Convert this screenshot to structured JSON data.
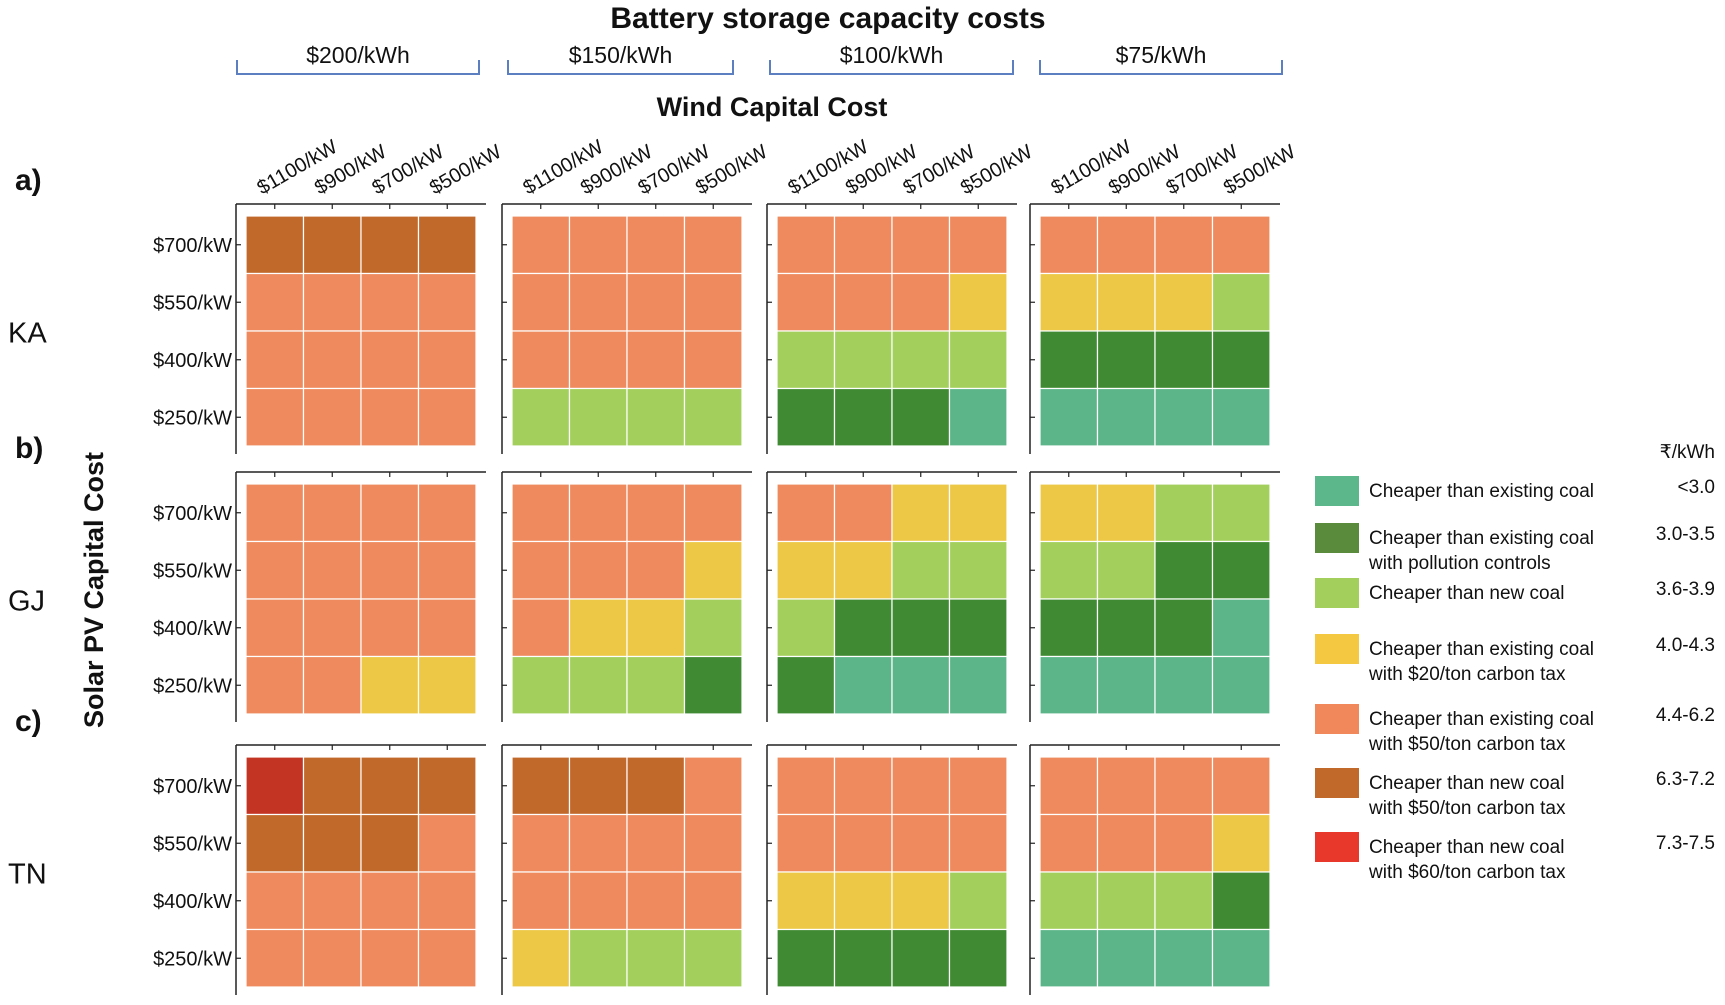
{
  "chart_data": {
    "type": "heatmap",
    "title": "Battery storage capacity costs",
    "column_group_label": "Wind Capital Cost",
    "ylabel": "Solar PV Capital Cost",
    "battery_costs": [
      "$200/kWh",
      "$150/kWh",
      "$100/kWh",
      "$75/kWh"
    ],
    "wind_costs": [
      "$1100/kW",
      "$900/kW",
      "$700/kW",
      "$500/kW"
    ],
    "solar_costs": [
      "$700/kW",
      "$550/kW",
      "$400/kW",
      "$250/kW"
    ],
    "regions": [
      {
        "panel": "a)",
        "name": "KA",
        "cells": [
          [
            [
              "brown",
              "brown",
              "brown",
              "brown"
            ],
            [
              "orange",
              "orange",
              "orange",
              "orange"
            ],
            [
              "orange",
              "orange",
              "orange",
              "orange"
            ],
            [
              "orange",
              "orange",
              "orange",
              "orange"
            ]
          ],
          [
            [
              "orange",
              "orange",
              "orange",
              "orange"
            ],
            [
              "orange",
              "orange",
              "orange",
              "orange"
            ],
            [
              "orange",
              "orange",
              "orange",
              "orange"
            ],
            [
              "lightgreen",
              "lightgreen",
              "lightgreen",
              "lightgreen"
            ]
          ],
          [
            [
              "orange",
              "orange",
              "orange",
              "orange"
            ],
            [
              "orange",
              "orange",
              "orange",
              "yellow"
            ],
            [
              "lightgreen",
              "lightgreen",
              "lightgreen",
              "lightgreen"
            ],
            [
              "darkgreen",
              "darkgreen",
              "darkgreen",
              "teal"
            ]
          ],
          [
            [
              "orange",
              "orange",
              "orange",
              "orange"
            ],
            [
              "yellow",
              "yellow",
              "yellow",
              "lightgreen"
            ],
            [
              "darkgreen",
              "darkgreen",
              "darkgreen",
              "darkgreen"
            ],
            [
              "teal",
              "teal",
              "teal",
              "teal"
            ]
          ]
        ]
      },
      {
        "panel": "b)",
        "name": "GJ",
        "cells": [
          [
            [
              "orange",
              "orange",
              "orange",
              "orange"
            ],
            [
              "orange",
              "orange",
              "orange",
              "orange"
            ],
            [
              "orange",
              "orange",
              "orange",
              "orange"
            ],
            [
              "orange",
              "orange",
              "yellow",
              "yellow"
            ]
          ],
          [
            [
              "orange",
              "orange",
              "orange",
              "orange"
            ],
            [
              "orange",
              "orange",
              "orange",
              "yellow"
            ],
            [
              "orange",
              "yellow",
              "yellow",
              "lightgreen"
            ],
            [
              "lightgreen",
              "lightgreen",
              "lightgreen",
              "darkgreen"
            ]
          ],
          [
            [
              "orange",
              "orange",
              "yellow",
              "yellow"
            ],
            [
              "yellow",
              "yellow",
              "lightgreen",
              "lightgreen"
            ],
            [
              "lightgreen",
              "darkgreen",
              "darkgreen",
              "darkgreen"
            ],
            [
              "darkgreen",
              "teal",
              "teal",
              "teal"
            ]
          ],
          [
            [
              "yellow",
              "yellow",
              "lightgreen",
              "lightgreen"
            ],
            [
              "lightgreen",
              "lightgreen",
              "darkgreen",
              "darkgreen"
            ],
            [
              "darkgreen",
              "darkgreen",
              "darkgreen",
              "teal"
            ],
            [
              "teal",
              "teal",
              "teal",
              "teal"
            ]
          ]
        ]
      },
      {
        "panel": "c)",
        "name": "TN",
        "cells": [
          [
            [
              "red",
              "brown",
              "brown",
              "brown"
            ],
            [
              "brown",
              "brown",
              "brown",
              "orange"
            ],
            [
              "orange",
              "orange",
              "orange",
              "orange"
            ],
            [
              "orange",
              "orange",
              "orange",
              "orange"
            ]
          ],
          [
            [
              "brown",
              "brown",
              "brown",
              "orange"
            ],
            [
              "orange",
              "orange",
              "orange",
              "orange"
            ],
            [
              "orange",
              "orange",
              "orange",
              "orange"
            ],
            [
              "yellow",
              "lightgreen",
              "lightgreen",
              "lightgreen"
            ]
          ],
          [
            [
              "orange",
              "orange",
              "orange",
              "orange"
            ],
            [
              "orange",
              "orange",
              "orange",
              "orange"
            ],
            [
              "yellow",
              "yellow",
              "yellow",
              "lightgreen"
            ],
            [
              "darkgreen",
              "darkgreen",
              "darkgreen",
              "darkgreen"
            ]
          ],
          [
            [
              "orange",
              "orange",
              "orange",
              "orange"
            ],
            [
              "orange",
              "orange",
              "orange",
              "yellow"
            ],
            [
              "lightgreen",
              "lightgreen",
              "lightgreen",
              "darkgreen"
            ],
            [
              "teal",
              "teal",
              "teal",
              "teal"
            ]
          ]
        ]
      }
    ],
    "legend": {
      "unit_header": "₹/kWh",
      "items": [
        {
          "key": "teal",
          "color": "#5cb88a",
          "lines": [
            "Cheaper than existing coal"
          ],
          "range": "<3.0"
        },
        {
          "key": "pollution",
          "color": "#5a8a3c",
          "lines": [
            "Cheaper than existing coal",
            "with pollution controls"
          ],
          "range": "3.0-3.5"
        },
        {
          "key": "lightgreen",
          "color": "#a3cf5d",
          "lines": [
            "Cheaper than new coal"
          ],
          "range": "3.6-3.9"
        },
        {
          "key": "yellow",
          "color": "#f5c842",
          "lines": [
            "Cheaper than existing coal",
            "with $20/ton carbon tax"
          ],
          "range": "4.0-4.3"
        },
        {
          "key": "orange",
          "color": "#f0885b",
          "lines": [
            "Cheaper than existing coal",
            "with $50/ton carbon tax"
          ],
          "range": "4.4-6.2"
        },
        {
          "key": "brown",
          "color": "#c1692a",
          "lines": [
            "Cheaper than new coal",
            "with $50/ton carbon tax"
          ],
          "range": "6.3-7.2"
        },
        {
          "key": "red",
          "color": "#e8382c",
          "lines": [
            "Cheaper than new coal",
            "with $60/ton carbon tax"
          ],
          "range": "7.3-7.5"
        }
      ]
    },
    "cell_colors": {
      "teal": "#5cb589",
      "darkgreen": "#3f8a32",
      "lightgreen": "#a3cf5d",
      "yellow": "#ecc846",
      "orange": "#ef8a5e",
      "brown": "#c0692b",
      "red": "#c43422"
    }
  }
}
